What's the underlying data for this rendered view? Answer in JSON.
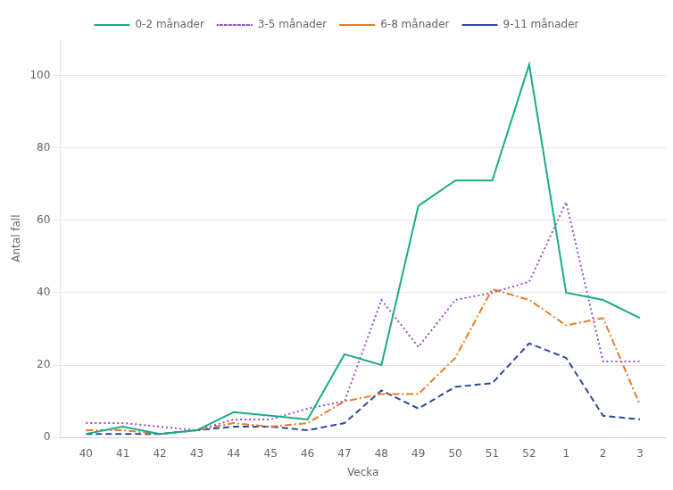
{
  "chart_data": {
    "type": "line",
    "x": [
      40,
      41,
      42,
      43,
      44,
      45,
      46,
      47,
      48,
      49,
      50,
      51,
      52,
      53,
      54,
      55
    ],
    "series": [
      {
        "name": "0-2 månader",
        "color": "#1aab8a",
        "line_style": "solid",
        "values": [
          1,
          3,
          1,
          2,
          7,
          6,
          5,
          23,
          20,
          64,
          71,
          71,
          103,
          40,
          38,
          33
        ]
      },
      {
        "name": "3-5 månader",
        "color": "#9b4fc8",
        "line_style": "dotted",
        "values": [
          4,
          4,
          3,
          2,
          5,
          5,
          8,
          10,
          38,
          25,
          38,
          40,
          43,
          65,
          21,
          21
        ]
      },
      {
        "name": "6-8 månader",
        "color": "#e87d2a",
        "line_style": "dashdot",
        "values": [
          2,
          2,
          1,
          2,
          4,
          3,
          4,
          10,
          12,
          12,
          22,
          41,
          38,
          31,
          33,
          9
        ]
      },
      {
        "name": "9-11 månader",
        "color": "#2c4b9e",
        "line_style": "dashed",
        "values": [
          1,
          1,
          1,
          2,
          3,
          3,
          2,
          4,
          13,
          8,
          14,
          15,
          26,
          22,
          6,
          5
        ]
      }
    ],
    "xlabel": "Vecka",
    "ylabel": "Antal fall",
    "xlim": [
      39.3,
      55.7
    ],
    "xticks": [
      40,
      41,
      42,
      43,
      44,
      45,
      46,
      47,
      48,
      49,
      50,
      51,
      52,
      {
        "value": 53,
        "label": "1"
      },
      {
        "value": 54,
        "label": "2"
      },
      {
        "value": 55,
        "label": "3"
      }
    ],
    "ylim": [
      0,
      110
    ],
    "yticks": [
      0,
      20,
      40,
      60,
      80,
      100
    ],
    "grid": true,
    "legend": "top"
  }
}
